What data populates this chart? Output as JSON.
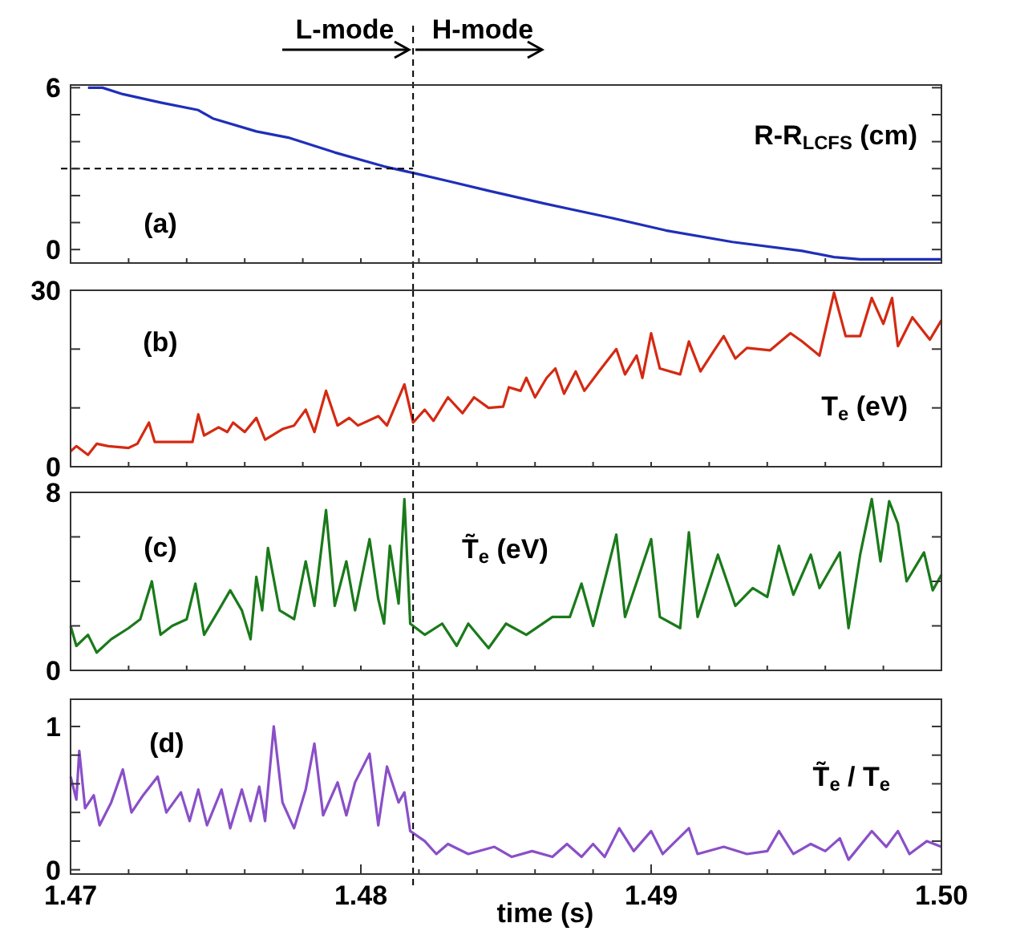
{
  "chart_data": [
    {
      "type": "line",
      "annotations": [
        "L-mode",
        "H-mode",
        "(a)",
        "R-R$_{LCFS}$ (cm)"
      ],
      "xlim": [
        1.47,
        1.5
      ],
      "ylim": [
        -0.5,
        6.1
      ],
      "tick_labels": "y",
      "line_style": "solid",
      "xticks": [
        {
          "value": 1.47,
          "label": null
        },
        {
          "value": 1.472,
          "label": null
        },
        {
          "value": 1.474,
          "label": null
        },
        {
          "value": 1.476,
          "label": null
        },
        {
          "value": 1.478,
          "label": null
        },
        {
          "value": 1.48,
          "label": null
        },
        {
          "value": 1.482,
          "label": null
        },
        {
          "value": 1.484,
          "label": null
        },
        {
          "value": 1.486,
          "label": null
        },
        {
          "value": 1.488,
          "label": null
        },
        {
          "value": 1.49,
          "label": null
        },
        {
          "value": 1.492,
          "label": null
        },
        {
          "value": 1.494,
          "label": null
        },
        {
          "value": 1.496,
          "label": null
        },
        {
          "value": 1.498,
          "label": null
        },
        {
          "value": 1.5,
          "label": null
        }
      ],
      "yticks": [
        0,
        {
          "value": 1,
          "label": null
        },
        {
          "value": 2,
          "label": null
        },
        {
          "value": 3,
          "label": null
        },
        {
          "value": 4,
          "label": null
        },
        {
          "value": 5,
          "label": null
        },
        6
      ],
      "ref_lines": [
        {
          "axis": "x",
          "value": 1.4818,
          "line_style": "dashed",
          "color": "#000000"
        },
        {
          "axis": "y",
          "value": 3,
          "line_style": "dashed",
          "color": "#000000"
        }
      ],
      "series": [
        {
          "color": "#1f2fb8",
          "x": [
            1.4706,
            1.4711,
            1.4718,
            1.4731,
            1.4744,
            1.4749,
            1.4764,
            1.4775,
            1.4791,
            1.4808,
            1.4818,
            1.483,
            1.4844,
            1.4863,
            1.4886,
            1.4905,
            1.4928,
            1.4952,
            1.4963,
            1.4972,
            1.5
          ],
          "values": [
            6.0,
            6.0,
            5.76,
            5.45,
            5.17,
            4.86,
            4.38,
            4.15,
            3.6,
            3.08,
            2.84,
            2.54,
            2.18,
            1.71,
            1.18,
            0.71,
            0.28,
            -0.05,
            -0.28,
            -0.36,
            -0.36
          ]
        }
      ]
    },
    {
      "type": "line",
      "annotations": [
        "(b)",
        "T$_{e}$ (eV)"
      ],
      "xlim": [
        1.47,
        1.5
      ],
      "ylim": [
        0,
        30
      ],
      "tick_labels": "y",
      "line_style": "solid",
      "xticks": [
        {
          "value": 1.47,
          "label": null
        },
        {
          "value": 1.472,
          "label": null
        },
        {
          "value": 1.474,
          "label": null
        },
        {
          "value": 1.476,
          "label": null
        },
        {
          "value": 1.478,
          "label": null
        },
        {
          "value": 1.48,
          "label": null
        },
        {
          "value": 1.482,
          "label": null
        },
        {
          "value": 1.484,
          "label": null
        },
        {
          "value": 1.486,
          "label": null
        },
        {
          "value": 1.488,
          "label": null
        },
        {
          "value": 1.49,
          "label": null
        },
        {
          "value": 1.492,
          "label": null
        },
        {
          "value": 1.494,
          "label": null
        },
        {
          "value": 1.496,
          "label": null
        },
        {
          "value": 1.498,
          "label": null
        },
        {
          "value": 1.5,
          "label": null
        }
      ],
      "yticks": [
        0,
        {
          "value": 10,
          "label": null
        },
        {
          "value": 20,
          "label": null
        },
        30
      ],
      "ref_lines": [
        {
          "axis": "x",
          "value": 1.4818,
          "line_style": "dashed",
          "color": "#000000"
        }
      ],
      "series": [
        {
          "color": "#d42a12",
          "x": [
            1.47,
            1.4702,
            1.4706,
            1.4709,
            1.4713,
            1.472,
            1.4723,
            1.4727,
            1.4729,
            1.4735,
            1.4742,
            1.4744,
            1.4746,
            1.4751,
            1.4754,
            1.4756,
            1.476,
            1.4764,
            1.4767,
            1.4773,
            1.4777,
            1.4781,
            1.4784,
            1.4788,
            1.4792,
            1.4796,
            1.4799,
            1.4806,
            1.4809,
            1.4815,
            1.4818,
            1.4822,
            1.4825,
            1.483,
            1.4835,
            1.4839,
            1.4844,
            1.4849,
            1.4851,
            1.4855,
            1.4857,
            1.486,
            1.4864,
            1.4867,
            1.487,
            1.4874,
            1.4877,
            1.4882,
            1.4888,
            1.4891,
            1.4895,
            1.4897,
            1.49,
            1.4903,
            1.491,
            1.4913,
            1.4917,
            1.4922,
            1.4925,
            1.4929,
            1.4933,
            1.4941,
            1.4948,
            1.4952,
            1.4958,
            1.4963,
            1.4967,
            1.4972,
            1.4976,
            1.498,
            1.4983,
            1.4985,
            1.499,
            1.4996,
            1.5
          ],
          "values": [
            2.6,
            3.5,
            2,
            3.9,
            3.5,
            3.2,
            3.9,
            7.5,
            4.2,
            4.2,
            4.2,
            8.9,
            5.3,
            6.7,
            5.9,
            7.5,
            5.9,
            8.3,
            4.6,
            6.4,
            7,
            9.7,
            5.9,
            12.9,
            7,
            8.3,
            7,
            8.6,
            7,
            14,
            7.5,
            9.7,
            7.8,
            11.8,
            9.1,
            11.8,
            10,
            10.2,
            13.5,
            12.9,
            15.1,
            11.8,
            15.1,
            16.7,
            12.4,
            16.2,
            12.9,
            16.2,
            20,
            15.7,
            18.9,
            15.1,
            22.7,
            16.7,
            15.7,
            21.3,
            16.2,
            20,
            22.2,
            18.4,
            20.2,
            19.8,
            22.7,
            21.3,
            18.9,
            29.6,
            22.2,
            22.2,
            28.7,
            24.3,
            28.7,
            20.5,
            25.4,
            21.6,
            24.9
          ]
        }
      ]
    },
    {
      "type": "line",
      "annotations": [
        "(c)",
        "T̃$_{e}$ (eV)"
      ],
      "xlim": [
        1.47,
        1.5
      ],
      "ylim": [
        0,
        8
      ],
      "tick_labels": "y",
      "line_style": "solid",
      "xticks": [
        {
          "value": 1.47,
          "label": null
        },
        {
          "value": 1.472,
          "label": null
        },
        {
          "value": 1.474,
          "label": null
        },
        {
          "value": 1.476,
          "label": null
        },
        {
          "value": 1.478,
          "label": null
        },
        {
          "value": 1.48,
          "label": null
        },
        {
          "value": 1.482,
          "label": null
        },
        {
          "value": 1.484,
          "label": null
        },
        {
          "value": 1.486,
          "label": null
        },
        {
          "value": 1.488,
          "label": null
        },
        {
          "value": 1.49,
          "label": null
        },
        {
          "value": 1.492,
          "label": null
        },
        {
          "value": 1.494,
          "label": null
        },
        {
          "value": 1.496,
          "label": null
        },
        {
          "value": 1.498,
          "label": null
        },
        {
          "value": 1.5,
          "label": null
        }
      ],
      "yticks": [
        0,
        {
          "value": 2,
          "label": null
        },
        {
          "value": 4,
          "label": null
        },
        {
          "value": 6,
          "label": null
        },
        8
      ],
      "ref_lines": [
        {
          "axis": "x",
          "value": 1.4818,
          "line_style": "dashed",
          "color": "#000000"
        }
      ],
      "series": [
        {
          "color": "#1a7a1a",
          "x": [
            1.47,
            1.4702,
            1.4706,
            1.4709,
            1.4714,
            1.472,
            1.4724,
            1.4728,
            1.4731,
            1.4735,
            1.474,
            1.4743,
            1.4746,
            1.4751,
            1.4755,
            1.4759,
            1.4762,
            1.4764,
            1.4766,
            1.4768,
            1.4772,
            1.4777,
            1.4781,
            1.4784,
            1.4788,
            1.4791,
            1.4795,
            1.4798,
            1.4803,
            1.4806,
            1.4808,
            1.481,
            1.4813,
            1.4815,
            1.4817,
            1.4822,
            1.4828,
            1.4833,
            1.4837,
            1.4844,
            1.485,
            1.4857,
            1.4866,
            1.4872,
            1.4876,
            1.488,
            1.4888,
            1.4891,
            1.49,
            1.4903,
            1.491,
            1.4913,
            1.4916,
            1.4923,
            1.4929,
            1.4935,
            1.494,
            1.4944,
            1.4949,
            1.4955,
            1.4958,
            1.4965,
            1.4968,
            1.4972,
            1.4976,
            1.4979,
            1.4982,
            1.4985,
            1.4988,
            1.4994,
            1.4997,
            1.5
          ],
          "values": [
            2,
            1.1,
            1.6,
            0.8,
            1.4,
            1.9,
            2.3,
            4,
            1.6,
            2,
            2.3,
            3.9,
            1.6,
            2.7,
            3.6,
            2.7,
            1.4,
            4.2,
            2.7,
            5.5,
            2.7,
            2.3,
            4.9,
            2.9,
            7.2,
            2.9,
            4.9,
            2.7,
            5.9,
            3.2,
            2.1,
            5.6,
            3,
            7.7,
            2.1,
            1.6,
            2.1,
            1.1,
            2.1,
            1,
            2.1,
            1.6,
            2.4,
            2.4,
            3.9,
            2,
            6.1,
            2.4,
            5.9,
            2.4,
            1.9,
            6.2,
            2.4,
            5.2,
            2.9,
            3.7,
            3.3,
            5.6,
            3.4,
            5.2,
            3.7,
            5.3,
            1.9,
            5.2,
            7.7,
            4.9,
            7.6,
            6.6,
            4,
            5.3,
            3.6,
            4.3
          ]
        }
      ]
    },
    {
      "type": "line",
      "annotations": [
        "(d)",
        "T̃$_{e}$ / T$_{e}$"
      ],
      "xlabel": "time (s)",
      "xlim": [
        1.47,
        1.5
      ],
      "ylim": [
        -0.03,
        1.19
      ],
      "line_style": "solid",
      "xticks": [
        1.47,
        {
          "value": 1.472,
          "label": null
        },
        {
          "value": 1.474,
          "label": null
        },
        {
          "value": 1.476,
          "label": null
        },
        {
          "value": 1.478,
          "label": null
        },
        1.48,
        {
          "value": 1.482,
          "label": null
        },
        {
          "value": 1.484,
          "label": null
        },
        {
          "value": 1.486,
          "label": null
        },
        {
          "value": 1.488,
          "label": null
        },
        1.49,
        {
          "value": 1.492,
          "label": null
        },
        {
          "value": 1.494,
          "label": null
        },
        {
          "value": 1.496,
          "label": null
        },
        {
          "value": 1.498,
          "label": null
        },
        {
          "value": 1.5,
          "label": "1.50"
        }
      ],
      "yticks": [
        0,
        {
          "value": 0.2,
          "label": null
        },
        {
          "value": 0.4,
          "label": null
        },
        {
          "value": 0.6,
          "label": null
        },
        {
          "value": 0.8,
          "label": null
        },
        1
      ],
      "ref_lines": [
        {
          "axis": "x",
          "value": 1.4818,
          "line_style": "dashed",
          "color": "#000000"
        }
      ],
      "series": [
        {
          "color": "#8a4fc8",
          "x": [
            1.47,
            1.4702,
            1.4703,
            1.4705,
            1.4708,
            1.471,
            1.4714,
            1.4718,
            1.4721,
            1.4725,
            1.473,
            1.4733,
            1.4738,
            1.4741,
            1.4744,
            1.4747,
            1.4752,
            1.4755,
            1.4759,
            1.4762,
            1.4765,
            1.4767,
            1.477,
            1.4773,
            1.4777,
            1.4781,
            1.4784,
            1.4787,
            1.4792,
            1.4795,
            1.4798,
            1.4803,
            1.4806,
            1.4809,
            1.4813,
            1.4815,
            1.4817,
            1.4822,
            1.4826,
            1.483,
            1.4837,
            1.4846,
            1.4852,
            1.4859,
            1.4866,
            1.4871,
            1.4876,
            1.488,
            1.4884,
            1.4889,
            1.4894,
            1.49,
            1.4904,
            1.4913,
            1.4916,
            1.4925,
            1.4933,
            1.494,
            1.4944,
            1.4949,
            1.4955,
            1.496,
            1.4965,
            1.4968,
            1.4976,
            1.4981,
            1.4985,
            1.4989,
            1.4995,
            1.5
          ],
          "values": [
            0.65,
            0.49,
            0.83,
            0.43,
            0.52,
            0.31,
            0.47,
            0.7,
            0.4,
            0.52,
            0.65,
            0.4,
            0.54,
            0.34,
            0.56,
            0.31,
            0.56,
            0.29,
            0.56,
            0.34,
            0.58,
            0.34,
            1,
            0.47,
            0.29,
            0.56,
            0.88,
            0.38,
            0.61,
            0.38,
            0.61,
            0.81,
            0.31,
            0.72,
            0.47,
            0.54,
            0.27,
            0.2,
            0.11,
            0.18,
            0.11,
            0.16,
            0.09,
            0.13,
            0.09,
            0.18,
            0.09,
            0.18,
            0.09,
            0.29,
            0.13,
            0.27,
            0.11,
            0.29,
            0.11,
            0.16,
            0.11,
            0.13,
            0.27,
            0.11,
            0.18,
            0.13,
            0.22,
            0.07,
            0.27,
            0.16,
            0.27,
            0.11,
            0.2,
            0.16
          ]
        }
      ]
    }
  ]
}
